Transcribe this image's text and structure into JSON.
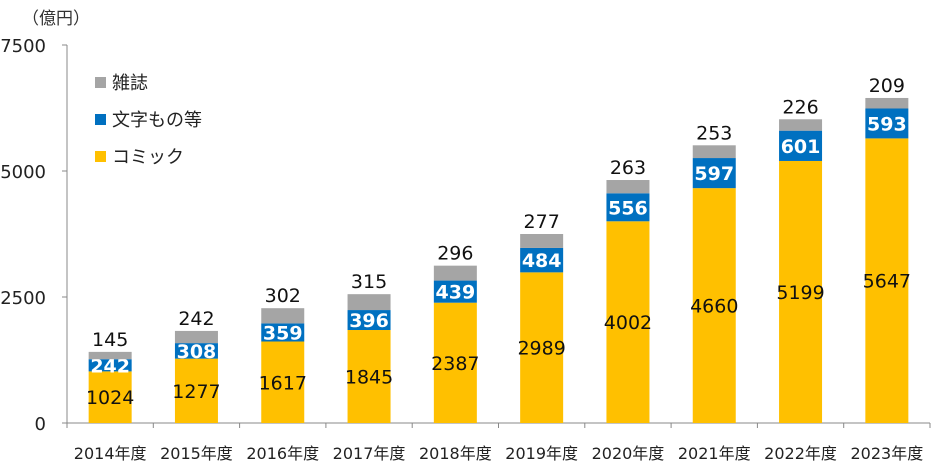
{
  "chart_data": {
    "type": "bar",
    "stacked": true,
    "unit_label": "（億円）",
    "categories": [
      "2014年度",
      "2015年度",
      "2016年度",
      "2017年度",
      "2018年度",
      "2019年度",
      "2020年度",
      "2021年度",
      "2022年度",
      "2023年度"
    ],
    "series": [
      {
        "name": "コミック",
        "color": "#FFC000",
        "values": [
          1024,
          1277,
          1617,
          1845,
          2387,
          2989,
          4002,
          4660,
          5199,
          5647
        ]
      },
      {
        "name": "文字もの等",
        "color": "#0070C0",
        "values": [
          242,
          308,
          359,
          396,
          439,
          484,
          556,
          597,
          601,
          593
        ]
      },
      {
        "name": "雑誌",
        "color": "#A5A5A5",
        "values": [
          145,
          242,
          302,
          315,
          296,
          277,
          263,
          253,
          226,
          209
        ]
      }
    ],
    "legend_order": [
      "雑誌",
      "文字もの等",
      "コミック"
    ],
    "ylim": [
      0,
      7500
    ],
    "yticks": [
      0,
      2500,
      5000,
      7500
    ],
    "grid": false,
    "legend_position": "top-left"
  }
}
